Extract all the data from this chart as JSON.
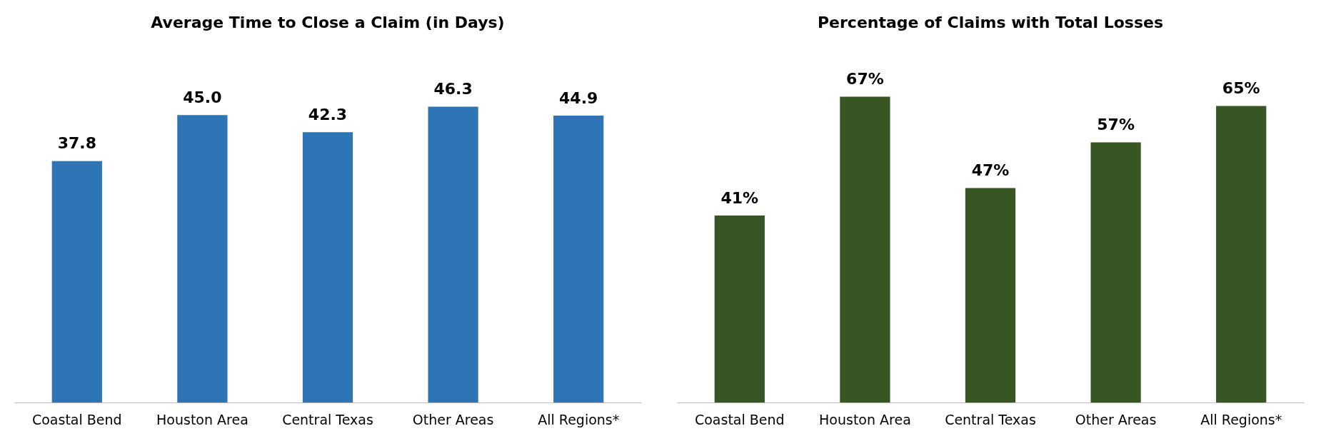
{
  "chart_data": [
    {
      "type": "bar",
      "title": "Average Time to Close a Claim (in Days)",
      "categories": [
        "Coastal Bend",
        "Houston Area",
        "Central Texas",
        "Other Areas",
        "All Regions*"
      ],
      "values": [
        37.8,
        45.0,
        42.3,
        46.3,
        44.9
      ],
      "value_labels": [
        "37.8",
        "45.0",
        "42.3",
        "46.3",
        "44.9"
      ],
      "color": "#2e75b6",
      "grid": false,
      "legend": false,
      "tick_labels": "x"
    },
    {
      "type": "bar",
      "title": "Percentage of Claims with Total Losses",
      "categories": [
        "Coastal Bend",
        "Houston Area",
        "Central Texas",
        "Other Areas",
        "All Regions*"
      ],
      "values": [
        41,
        67,
        47,
        57,
        65
      ],
      "value_labels": [
        "41%",
        "67%",
        "47%",
        "57%",
        "65%"
      ],
      "color": "#375623",
      "grid": false,
      "legend": false,
      "tick_labels": "x"
    }
  ]
}
